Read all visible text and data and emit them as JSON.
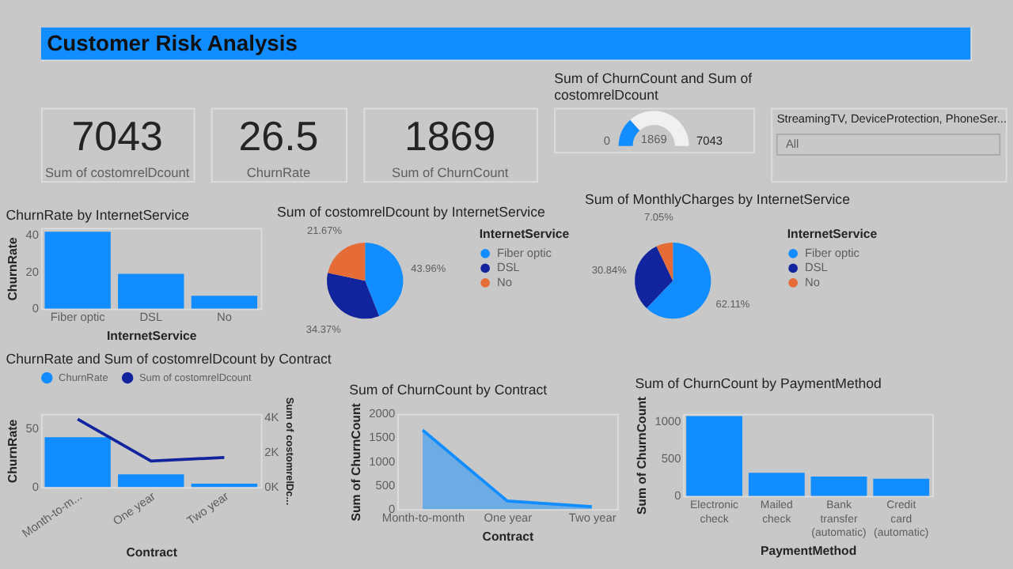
{
  "chart_data": [
    {
      "type": "other",
      "title": "Customer Risk Analysis"
    },
    {
      "type": "other",
      "annotations": [
        "7043",
        "Sum of costomrelDcount"
      ]
    },
    {
      "type": "other",
      "annotations": [
        "26.5",
        "ChurnRate"
      ]
    },
    {
      "type": "other",
      "annotations": [
        "1869",
        "Sum of ChurnCount"
      ]
    },
    {
      "type": "donut",
      "title": "Sum of ChurnCount and Sum of costomrelDcount",
      "categories": [
        null,
        null
      ],
      "values": [
        26.54,
        73.46
      ],
      "colors": [
        "#118dff",
        "#f0f0f0"
      ],
      "annotations": [
        "0",
        "1869",
        "7043"
      ]
    },
    {
      "type": "other",
      "title": "StreamingTV, DeviceProtection, PhoneSer...",
      "annotations": [
        "All"
      ]
    },
    {
      "type": "bar",
      "title": "ChurnRate by InternetService",
      "categories": [
        "Fiber optic",
        "DSL",
        "No"
      ],
      "values": [
        42,
        19,
        7
      ],
      "color": "#118dff",
      "xlabel": "InternetService",
      "ylabel": "ChurnRate",
      "ylim": [
        0,
        44
      ],
      "yticks": [
        0,
        20,
        40
      ]
    },
    {
      "type": "pie",
      "title": "Sum of costomrelDcount by InternetService",
      "categories": [
        "Fiber optic",
        "DSL",
        "No"
      ],
      "values": [
        43.96,
        34.37,
        21.67
      ],
      "value_labels": [
        "43.96%",
        "34.37%",
        "21.67%"
      ],
      "colors": [
        "#118dff",
        "#12239e",
        "#e66c37"
      ],
      "legend": "right",
      "legend_title": "InternetService"
    },
    {
      "type": "pie",
      "title": "Sum of MonthlyCharges by InternetService",
      "categories": [
        "Fiber optic",
        "DSL",
        "No"
      ],
      "values": [
        62.11,
        30.84,
        7.05
      ],
      "value_labels": [
        "62.11%",
        "30.84%",
        "7.05%"
      ],
      "colors": [
        "#118dff",
        "#12239e",
        "#e66c37"
      ],
      "legend": "right",
      "legend_title": "InternetService"
    },
    {
      "type": "bar",
      "title": "ChurnRate and Sum of costomrelDcount by Contract",
      "categories": [
        "Month-to-m...",
        "One year",
        "Two year"
      ],
      "xlabel": "Contract",
      "ylabel": "ChurnRate",
      "y2label": "Sum of costomrelDc...",
      "ylim": [
        0,
        63
      ],
      "yticks": [
        0,
        50
      ],
      "y2lim": [
        0,
        4200
      ],
      "y2ticks": [
        {
          "value": 0,
          "label": "0K"
        },
        {
          "value": 2000,
          "label": "2K"
        },
        {
          "value": 4000,
          "label": "4K"
        }
      ],
      "legend": "top left",
      "series": [
        {
          "name": "ChurnRate",
          "type": "bar",
          "color": "#118dff",
          "values": [
            43,
            11,
            3
          ]
        },
        {
          "name": "Sum of costomrelDcount",
          "type": "line",
          "axis": "y2",
          "color": "#12239e",
          "values": [
            3900,
            1500,
            1700
          ]
        }
      ]
    },
    {
      "type": "area",
      "title": "Sum of ChurnCount by Contract",
      "categories": [
        "Month-to-month",
        "One year",
        "Two year"
      ],
      "values": [
        1660,
        170,
        50
      ],
      "color": "#118dff",
      "xlabel": "Contract",
      "ylabel": "Sum of ChurnCount",
      "ylim": [
        0,
        2000
      ],
      "yticks": [
        0,
        500,
        1000,
        1500,
        2000
      ]
    },
    {
      "type": "bar",
      "title": "Sum of ChurnCount by PaymentMethod",
      "categories": [
        "Electronic check",
        "Mailed check",
        "Bank transfer (automatic)",
        "Credit card (automatic)"
      ],
      "values": [
        1070,
        310,
        260,
        230
      ],
      "color": "#118dff",
      "xlabel": "PaymentMethod",
      "ylabel": "Sum of ChurnCount",
      "ylim": [
        0,
        1100
      ],
      "yticks": [
        0,
        500,
        1000
      ]
    }
  ]
}
